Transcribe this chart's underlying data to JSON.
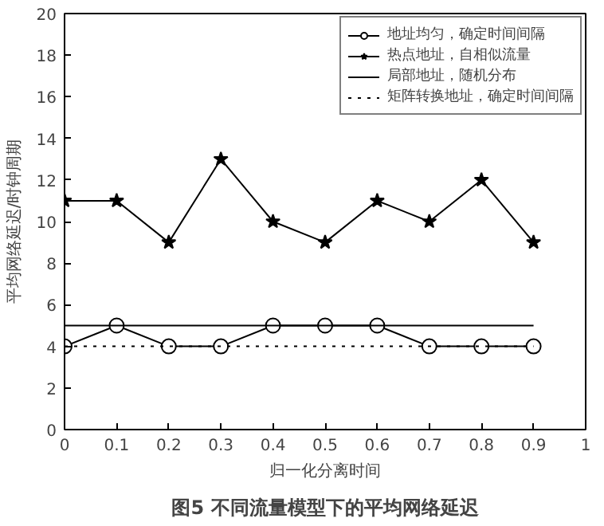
{
  "chart_data": {
    "type": "line",
    "title": "图5 不同流量模型下的平均网络延迟",
    "xlabel": "归一化分离时间",
    "ylabel": "平均网络延迟/时钟周期",
    "x": [
      0,
      0.1,
      0.2,
      0.3,
      0.4,
      0.5,
      0.6,
      0.7,
      0.8,
      0.9
    ],
    "series": [
      {
        "name": "地址均匀，确定时间间隔",
        "color": "#000000",
        "marker": "circle",
        "line_style": "solid",
        "values": [
          4,
          5,
          4,
          4,
          5,
          5,
          5,
          4,
          4,
          4
        ]
      },
      {
        "name": "热点地址，自相似流量",
        "color": "#000000",
        "marker": "star",
        "line_style": "solid",
        "values": [
          11,
          11,
          9,
          13,
          10,
          9,
          11,
          10,
          12,
          9
        ]
      },
      {
        "name": "局部地址，随机分布",
        "color": "#000000",
        "marker": "none",
        "line_style": "solid",
        "values": [
          5,
          5,
          5,
          5,
          5,
          5,
          5,
          5,
          5,
          5
        ]
      },
      {
        "name": "矩阵转换地址，确定时间间隔",
        "color": "#000000",
        "marker": "none",
        "line_style": "dotted",
        "values": [
          4,
          4,
          4,
          4,
          4,
          4,
          4,
          4,
          4,
          4
        ]
      }
    ],
    "xlim": [
      0,
      1
    ],
    "ylim": [
      0,
      20
    ],
    "xticks": [
      0,
      {
        "value": 0.1,
        "label": "0.1"
      },
      {
        "value": 0.2,
        "label": "0.2"
      },
      {
        "value": 0.3,
        "label": "0.3"
      },
      {
        "value": 0.4,
        "label": "0.4"
      },
      {
        "value": 0.5,
        "label": "0.5"
      },
      {
        "value": 0.6,
        "label": "0.6"
      },
      {
        "value": 0.7,
        "label": "0.7"
      },
      {
        "value": 0.8,
        "label": "0.8"
      },
      {
        "value": 0.9,
        "label": "0.9"
      },
      1
    ],
    "yticks": [
      0,
      2,
      4,
      6,
      8,
      10,
      12,
      14,
      16,
      18,
      20
    ],
    "grid": false,
    "legend": "top right"
  }
}
